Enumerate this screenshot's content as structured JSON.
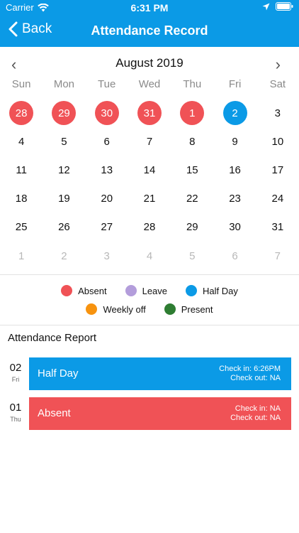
{
  "status_bar": {
    "carrier": "Carrier",
    "time": "6:31 PM",
    "icons": [
      "wifi-icon",
      "location-arrow-icon",
      "battery-icon"
    ]
  },
  "nav": {
    "back_label": "Back",
    "title": "Attendance Record"
  },
  "calendar": {
    "month_title": "August 2019",
    "weekdays": [
      "Sun",
      "Mon",
      "Tue",
      "Wed",
      "Thu",
      "Fri",
      "Sat"
    ],
    "days": [
      {
        "label": "28",
        "status": "absent"
      },
      {
        "label": "29",
        "status": "absent"
      },
      {
        "label": "30",
        "status": "absent"
      },
      {
        "label": "31",
        "status": "absent"
      },
      {
        "label": "1",
        "status": "absent"
      },
      {
        "label": "2",
        "status": "halfday"
      },
      {
        "label": "3",
        "status": ""
      },
      {
        "label": "4",
        "status": ""
      },
      {
        "label": "5",
        "status": ""
      },
      {
        "label": "6",
        "status": ""
      },
      {
        "label": "7",
        "status": ""
      },
      {
        "label": "8",
        "status": ""
      },
      {
        "label": "9",
        "status": ""
      },
      {
        "label": "10",
        "status": ""
      },
      {
        "label": "11",
        "status": ""
      },
      {
        "label": "12",
        "status": ""
      },
      {
        "label": "13",
        "status": ""
      },
      {
        "label": "14",
        "status": ""
      },
      {
        "label": "15",
        "status": ""
      },
      {
        "label": "16",
        "status": ""
      },
      {
        "label": "17",
        "status": ""
      },
      {
        "label": "18",
        "status": ""
      },
      {
        "label": "19",
        "status": ""
      },
      {
        "label": "20",
        "status": ""
      },
      {
        "label": "21",
        "status": ""
      },
      {
        "label": "22",
        "status": ""
      },
      {
        "label": "23",
        "status": ""
      },
      {
        "label": "24",
        "status": ""
      },
      {
        "label": "25",
        "status": ""
      },
      {
        "label": "26",
        "status": ""
      },
      {
        "label": "27",
        "status": ""
      },
      {
        "label": "28",
        "status": ""
      },
      {
        "label": "29",
        "status": ""
      },
      {
        "label": "30",
        "status": ""
      },
      {
        "label": "31",
        "status": ""
      },
      {
        "label": "1",
        "status": "other"
      },
      {
        "label": "2",
        "status": "other"
      },
      {
        "label": "3",
        "status": "other"
      },
      {
        "label": "4",
        "status": "other"
      },
      {
        "label": "5",
        "status": "other"
      },
      {
        "label": "6",
        "status": "other"
      },
      {
        "label": "7",
        "status": "other"
      }
    ]
  },
  "legend": {
    "row1": [
      {
        "label": "Absent",
        "color": "#f05256"
      },
      {
        "label": "Leave",
        "color": "#b39ddb"
      },
      {
        "label": "Half Day",
        "color": "#0b9ae6"
      }
    ],
    "row2": [
      {
        "label": "Weekly off",
        "color": "#f7930f"
      },
      {
        "label": "Present",
        "color": "#2e7d32"
      }
    ]
  },
  "report": {
    "title": "Attendance Report",
    "records": [
      {
        "day": "02",
        "weekday": "Fri",
        "status": "Half Day",
        "check_in": "Check in: 6:26PM",
        "check_out": "Check out: NA",
        "color": "#0b9ae6"
      },
      {
        "day": "01",
        "weekday": "Thu",
        "status": "Absent",
        "check_in": "Check in: NA",
        "check_out": "Check out: NA",
        "color": "#f05256"
      }
    ]
  }
}
